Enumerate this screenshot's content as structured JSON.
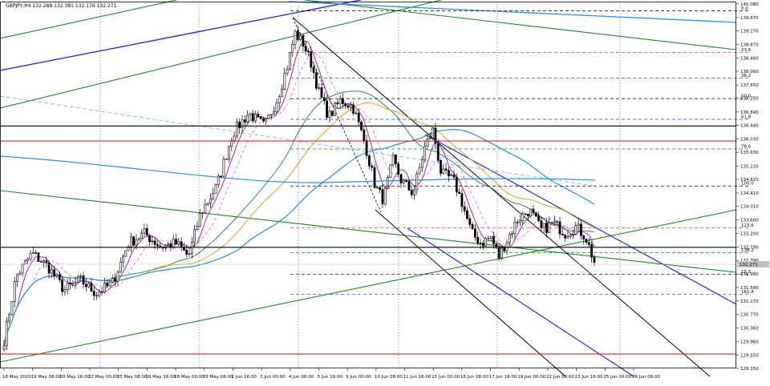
{
  "chart_data": {
    "type": "candlestick",
    "title": "GBPJPY,H4  132.288 132.381 132.176 132.271",
    "symbol": "GBPJPY",
    "timeframe": "H4",
    "ohlc_header": {
      "open": 132.288,
      "high": 132.381,
      "low": 132.176,
      "close": 132.271
    },
    "last_price": 132.271,
    "last_price_label": "132.271",
    "ylim": [
      129.15,
      140.15
    ],
    "y_ticks": [
      "140.080",
      "139.670",
      "139.270",
      "138.870",
      "138.460",
      "138.060",
      "137.650",
      "137.250",
      "136.840",
      "136.440",
      "136.030",
      "135.630",
      "135.220",
      "134.820",
      "134.410",
      "134.010",
      "133.600",
      "133.200",
      "132.790",
      "132.390",
      "131.980",
      "131.580",
      "131.170",
      "130.770",
      "130.360",
      "129.960",
      "129.550",
      "129.150"
    ],
    "x_ticks": [
      "18 May 2020",
      "19 May 08:00",
      "20 May 16:00",
      "22 May 00:00",
      "25 May 08:00",
      "26 May 16:00",
      "28 May 00:00",
      "29 May 08:00",
      "1 Jun 16:00",
      "3 Jun 00:00",
      "4 Jun 08:00",
      "5 Jun 16:00",
      "9 Jun 00:00",
      "10 Jun 08:00",
      "11 Jun 16:00",
      "15 Jun 00:00",
      "16 Jun 08:00",
      "17 Jun 16:00",
      "19 Jun 00:00",
      "22 Jun 08:00",
      "23 Jun 16:00",
      "25 Jun 00:00",
      "26 Jun 08:00"
    ],
    "fib_levels": [
      {
        "label": "0.0",
        "price": 139.87
      },
      {
        "label": "23.6",
        "price": 138.62
      },
      {
        "label": "38.2",
        "price": 137.86
      },
      {
        "label": "50.0",
        "price": 137.24
      },
      {
        "label": "61.8",
        "price": 136.62
      },
      {
        "label": "78.6",
        "price": 135.73
      },
      {
        "label": "100.0",
        "price": 134.62
      },
      {
        "label": "123.6",
        "price": 133.37
      },
      {
        "label": "138.2",
        "price": 132.62
      },
      {
        "label": "15.0",
        "price": 131.97
      },
      {
        "label": "161.8",
        "price": 131.37
      }
    ],
    "horizontal_lines": [
      {
        "price": 135.97,
        "color": "#e02020"
      },
      {
        "price": 136.42,
        "color": "#000000"
      },
      {
        "price": 132.78,
        "color": "#000000"
      },
      {
        "price": 129.58,
        "color": "#e02020"
      }
    ]
  }
}
